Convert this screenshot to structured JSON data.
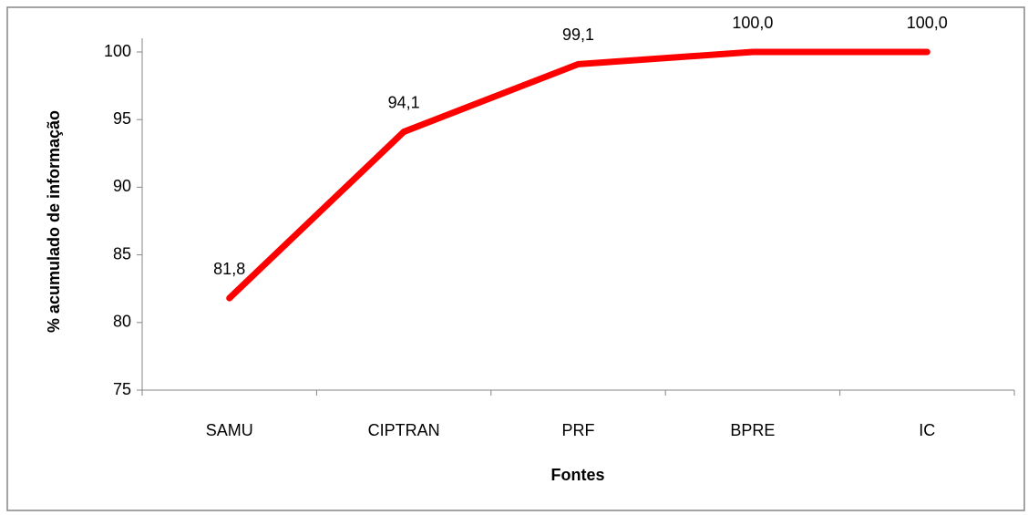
{
  "chart_data": {
    "type": "line",
    "x_label": "Fontes",
    "y_label": "% acumulado de informação",
    "categories": [
      "SAMU",
      "CIPTRAN",
      "PRF",
      "BPRE",
      "IC"
    ],
    "values": [
      81.8,
      94.1,
      99.1,
      100.0,
      100.0
    ],
    "value_labels": [
      "81,8",
      "94,1",
      "99,1",
      "100,0",
      "100,0"
    ],
    "color": "#ff0000",
    "ylim": [
      75,
      100
    ],
    "yticks": [
      75,
      80,
      85,
      90,
      95,
      100
    ],
    "grid": false
  }
}
